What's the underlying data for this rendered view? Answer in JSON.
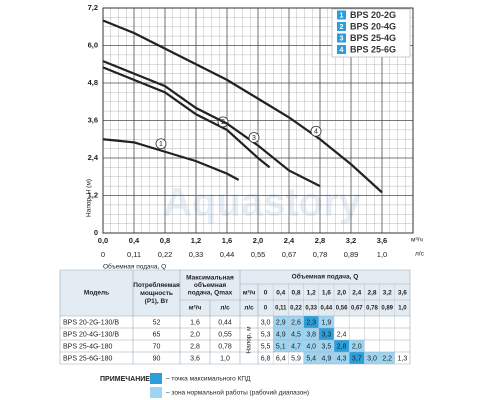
{
  "chart_data": {
    "type": "line",
    "ylabel": "Напор, Н (м)",
    "xlabel": "Объемная подача, Q",
    "xunit": "м³/ч",
    "x2unit": "л/с",
    "watermark": "Aquastory",
    "xlim": [
      0,
      4.0
    ],
    "ylim": [
      0,
      7.2
    ],
    "xticks": [
      {
        "value": 0,
        "label": "0,0"
      },
      {
        "value": 0.4,
        "label": "0,4"
      },
      {
        "value": 0.8,
        "label": "0,8"
      },
      {
        "value": 1.2,
        "label": "1,2"
      },
      {
        "value": 1.6,
        "label": "1,6"
      },
      {
        "value": 2.0,
        "label": "2,0"
      },
      {
        "value": 2.4,
        "label": "2,4"
      },
      {
        "value": 2.8,
        "label": "2,8"
      },
      {
        "value": 3.2,
        "label": "3,2"
      },
      {
        "value": 3.6,
        "label": "3,6"
      }
    ],
    "x2ticks": [
      0,
      {
        "value": 0.11,
        "label": "0,11"
      },
      {
        "value": 0.22,
        "label": "0,22"
      },
      {
        "value": 0.33,
        "label": "0,33"
      },
      {
        "value": 0.44,
        "label": "0,44"
      },
      {
        "value": 0.55,
        "label": "0,55"
      },
      {
        "value": 0.67,
        "label": "0,67"
      },
      {
        "value": 0.78,
        "label": "0,78"
      },
      {
        "value": 0.89,
        "label": "0,89"
      },
      {
        "value": 1.0,
        "label": "1,0"
      }
    ],
    "yticks": [
      0,
      {
        "value": 1.2,
        "label": "1,2"
      },
      {
        "value": 2.4,
        "label": "2,4"
      },
      {
        "value": 3.6,
        "label": "3,6"
      },
      {
        "value": 4.8,
        "label": "4,8"
      },
      {
        "value": 6.0,
        "label": "6,0"
      },
      {
        "value": 7.2,
        "label": "7,2"
      }
    ],
    "grid": true,
    "legend_color": "#2a9fdc",
    "series": [
      {
        "name": "BPS 20-2G",
        "label": "1",
        "color": "#222222",
        "x": [
          0,
          0.4,
          0.8,
          1.2,
          1.6,
          1.75
        ],
        "values": [
          3.0,
          2.9,
          2.6,
          2.3,
          1.9,
          1.7
        ]
      },
      {
        "name": "BPS 20-4G",
        "label": "2",
        "color": "#222222",
        "x": [
          0,
          0.4,
          0.8,
          1.2,
          1.6,
          2.0,
          2.15
        ],
        "values": [
          5.3,
          4.9,
          4.5,
          3.8,
          3.3,
          2.4,
          2.1
        ]
      },
      {
        "name": "BPS 25-4G",
        "label": "3",
        "color": "#222222",
        "x": [
          0,
          0.4,
          0.8,
          1.2,
          1.6,
          2.0,
          2.4,
          2.8
        ],
        "values": [
          5.5,
          5.1,
          4.7,
          4.0,
          3.5,
          2.8,
          2.0,
          1.5
        ]
      },
      {
        "name": "BPS 25-6G",
        "label": "4",
        "color": "#222222",
        "x": [
          0,
          0.4,
          0.8,
          1.2,
          1.6,
          2.0,
          2.4,
          2.8,
          3.2,
          3.6
        ],
        "values": [
          6.8,
          6.4,
          5.9,
          5.4,
          4.9,
          4.3,
          3.7,
          3.0,
          2.2,
          1.3
        ]
      }
    ]
  },
  "table": {
    "headers": {
      "model": "Модель",
      "power": "Потребляемая мощность (P1), Вт",
      "qmax": "Максимальная объемная подача, Qmax",
      "qmax_m3h": "м³/ч",
      "qmax_ls": "л/с",
      "flow": "Объемная подача, Q",
      "unit_m3h": "м³/ч",
      "unit_ls": "л/с",
      "head": "Напор, м",
      "q_m3h": [
        "0",
        "0,4",
        "0,8",
        "1,2",
        "1,6",
        "2,0",
        "2,4",
        "2,8",
        "3,2",
        "3,6"
      ],
      "q_ls": [
        "0",
        "0,11",
        "0,22",
        "0,33",
        "0,44",
        "0,56",
        "0,67",
        "0,78",
        "0,89",
        "1,0"
      ]
    },
    "rows": [
      {
        "model": "BPS 20-2G-130/B",
        "power": "52",
        "qmax_m3h": "1,6",
        "qmax_ls": "0,44",
        "heads": [
          "3,0",
          "2,9",
          "2,6",
          "2,3",
          "1,9"
        ],
        "cell_colors": [
          null,
          "#9fd4f0",
          "#9fd4f0",
          "#2a9fdc",
          "#9fd4f0"
        ]
      },
      {
        "model": "BPS 20-4G-130/B",
        "power": "65",
        "qmax_m3h": "2,0",
        "qmax_ls": "0,55",
        "heads": [
          "5,3",
          "4,9",
          "4,5",
          "3,8",
          "3,3",
          "2,4"
        ],
        "cell_colors": [
          null,
          "#9fd4f0",
          "#9fd4f0",
          "#9fd4f0",
          "#2a9fdc",
          null
        ]
      },
      {
        "model": "BPS 25-4G-180",
        "power": "70",
        "qmax_m3h": "2,8",
        "qmax_ls": "0,78",
        "heads": [
          "5,5",
          "5,1",
          "4,7",
          "4,0",
          "3,5",
          "2,8",
          "2,0"
        ],
        "cell_colors": [
          null,
          "#9fd4f0",
          "#9fd4f0",
          "#9fd4f0",
          "#9fd4f0",
          "#2a9fdc",
          "#9fd4f0"
        ]
      },
      {
        "model": "BPS 25-6G-180",
        "power": "90",
        "qmax_m3h": "3,6",
        "qmax_ls": "1,0",
        "heads": [
          "6,8",
          "6,4",
          "5,9",
          "5,4",
          "4,9",
          "4,3",
          "3,7",
          "3,0",
          "2,2",
          "1,3"
        ],
        "cell_colors": [
          null,
          null,
          null,
          "#9fd4f0",
          "#9fd4f0",
          "#9fd4f0",
          "#2a9fdc",
          "#9fd4f0",
          "#9fd4f0",
          null
        ]
      }
    ]
  },
  "note": {
    "title": "ПРИМЕЧАНИЕ:",
    "items": [
      {
        "color": "#2a9fdc",
        "text": "– точка максимального КПД"
      },
      {
        "color": "#9fd4f0",
        "text": "– зона нормальной работы (рабочий диапазон)"
      }
    ]
  }
}
